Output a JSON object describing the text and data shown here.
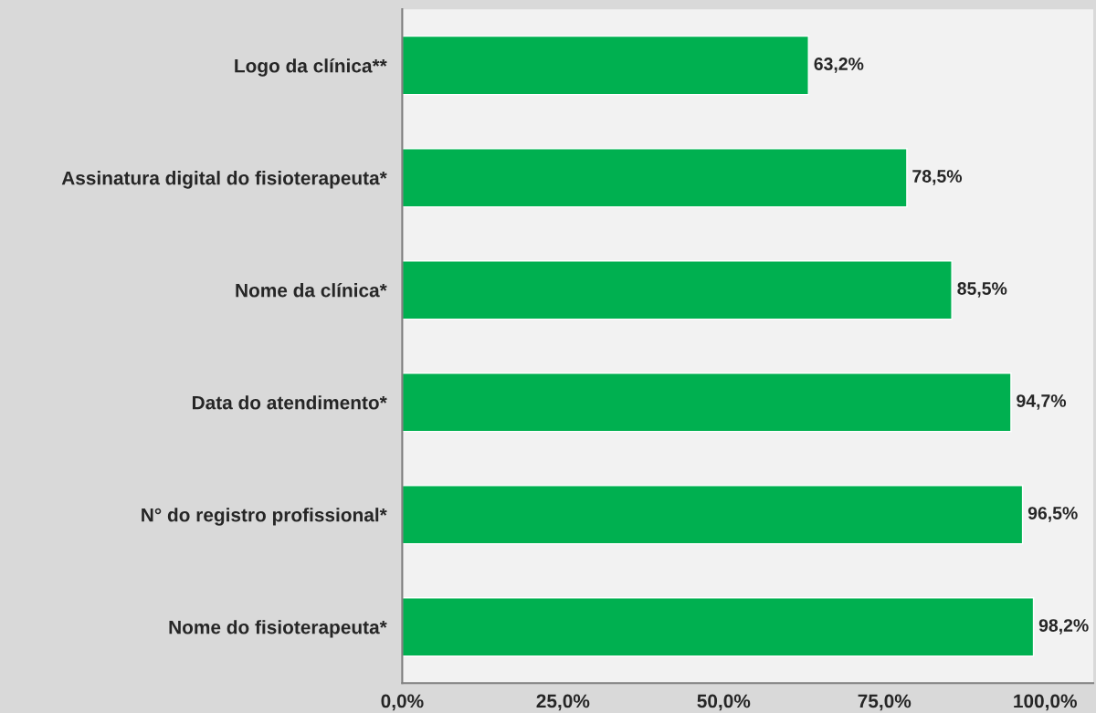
{
  "chart_data": {
    "type": "bar",
    "orientation": "horizontal",
    "categories": [
      "Logo da clínica**",
      "Assinatura digital do fisioterapeuta*",
      "Nome da clínica*",
      "Data do atendimento*",
      "N° do registro profissional*",
      "Nome do fisioterapeuta*"
    ],
    "values": [
      63.2,
      78.5,
      85.5,
      94.7,
      96.5,
      98.2
    ],
    "value_labels": [
      "63,2%",
      "78,5%",
      "85,5%",
      "94,7%",
      "96,5%",
      "98,2%"
    ],
    "color": "#00b050",
    "xlim": [
      0,
      107.5
    ],
    "xticks": [
      {
        "value": 0,
        "label": "0,0%"
      },
      {
        "value": 25,
        "label": "25,0%"
      },
      {
        "value": 50,
        "label": "50,0%"
      },
      {
        "value": 75,
        "label": "75,0%"
      },
      {
        "value": 100,
        "label": "100,0%"
      }
    ],
    "grid": false,
    "legend": false
  }
}
